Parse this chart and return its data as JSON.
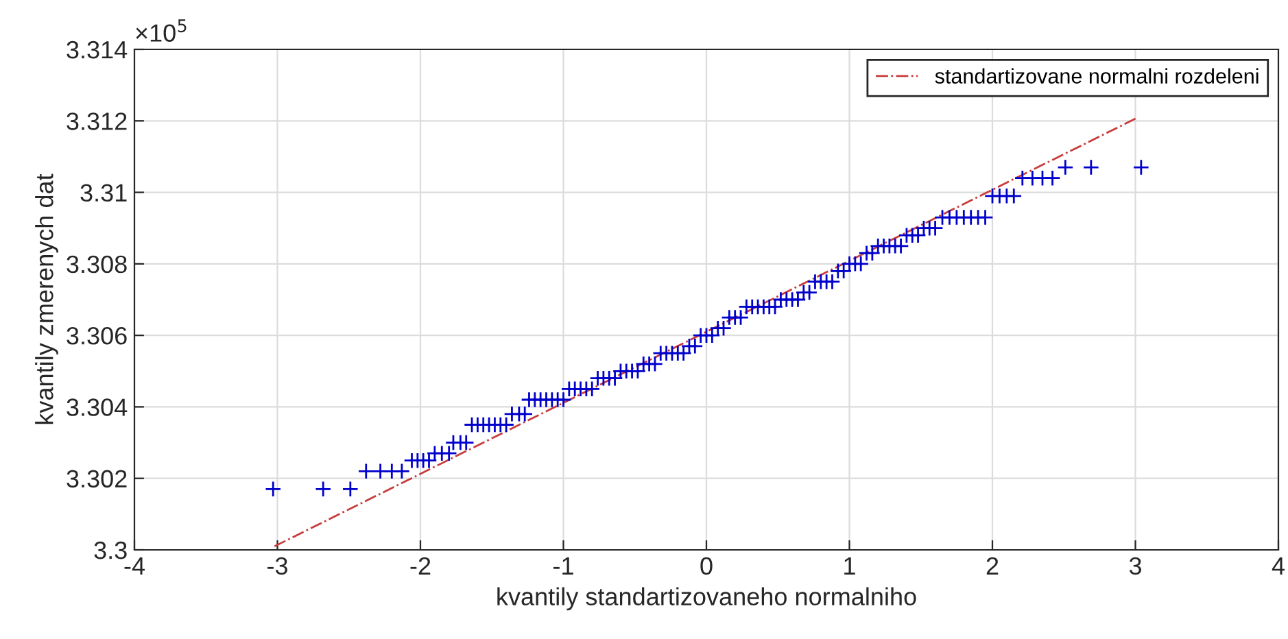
{
  "chart_data": {
    "type": "scatter",
    "xlabel": "kvantily standartizovaneho normalniho",
    "ylabel": "kvantily zmerenych dat",
    "annotations": [
      "×10$^{5}$"
    ],
    "xlim": [
      -4,
      4
    ],
    "xticks": [
      -4,
      -3,
      -2,
      -1,
      0,
      1,
      2,
      3,
      4
    ],
    "ylim": [
      3.3,
      3.314
    ],
    "yticks": [
      3.3,
      3.302,
      3.304,
      3.306,
      3.308,
      3.31,
      3.312,
      3.314
    ],
    "grid": true,
    "legend": "top right",
    "series": [
      {
        "color": "#0000cc",
        "marker": "cross",
        "x": [
          -3.03,
          -2.68,
          -2.49,
          -2.38,
          -2.28,
          -2.2,
          -2.13,
          -2.06,
          -2.02,
          -1.98,
          -1.94,
          -1.9,
          -1.85,
          -1.8,
          -1.77,
          -1.72,
          -1.68,
          -1.64,
          -1.6,
          -1.56,
          -1.52,
          -1.48,
          -1.44,
          -1.4,
          -1.36,
          -1.31,
          -1.27,
          -1.24,
          -1.2,
          -1.16,
          -1.12,
          -1.08,
          -1.04,
          -1.0,
          -0.96,
          -0.92,
          -0.88,
          -0.84,
          -0.8,
          -0.76,
          -0.72,
          -0.68,
          -0.64,
          -0.6,
          -0.56,
          -0.52,
          -0.48,
          -0.44,
          -0.4,
          -0.36,
          -0.32,
          -0.28,
          -0.24,
          -0.2,
          -0.16,
          -0.12,
          -0.08,
          -0.04,
          0.0,
          0.04,
          0.08,
          0.12,
          0.16,
          0.2,
          0.24,
          0.28,
          0.32,
          0.36,
          0.4,
          0.44,
          0.48,
          0.52,
          0.56,
          0.6,
          0.64,
          0.68,
          0.72,
          0.76,
          0.8,
          0.84,
          0.88,
          0.92,
          0.96,
          1.0,
          1.04,
          1.08,
          1.12,
          1.16,
          1.2,
          1.24,
          1.28,
          1.32,
          1.36,
          1.4,
          1.44,
          1.48,
          1.52,
          1.56,
          1.6,
          1.65,
          1.7,
          1.75,
          1.8,
          1.85,
          1.9,
          1.95,
          2.0,
          2.05,
          2.1,
          2.15,
          2.21,
          2.28,
          2.35,
          2.42,
          2.51,
          2.69,
          3.04
        ],
        "values": [
          3.3017,
          3.3017,
          3.3017,
          3.3022,
          3.3022,
          3.3022,
          3.3022,
          3.3025,
          3.3025,
          3.3025,
          3.3025,
          3.3027,
          3.3027,
          3.3027,
          3.303,
          3.303,
          3.303,
          3.3035,
          3.3035,
          3.3035,
          3.3035,
          3.3035,
          3.3035,
          3.3035,
          3.3038,
          3.3038,
          3.3038,
          3.3042,
          3.3042,
          3.3042,
          3.3042,
          3.3042,
          3.3042,
          3.3042,
          3.3045,
          3.3045,
          3.3045,
          3.3045,
          3.3045,
          3.3048,
          3.3048,
          3.3048,
          3.3048,
          3.305,
          3.305,
          3.305,
          3.305,
          3.3052,
          3.3052,
          3.3052,
          3.3055,
          3.3055,
          3.3055,
          3.3055,
          3.3055,
          3.3057,
          3.3057,
          3.306,
          3.306,
          3.306,
          3.3062,
          3.3062,
          3.3065,
          3.3065,
          3.3065,
          3.3068,
          3.3068,
          3.3068,
          3.3068,
          3.3068,
          3.3068,
          3.307,
          3.307,
          3.307,
          3.307,
          3.3072,
          3.3072,
          3.3075,
          3.3075,
          3.3075,
          3.3075,
          3.3078,
          3.3078,
          3.308,
          3.308,
          3.308,
          3.3083,
          3.3083,
          3.3085,
          3.3085,
          3.3085,
          3.3085,
          3.3085,
          3.3088,
          3.3088,
          3.3088,
          3.309,
          3.309,
          3.309,
          3.3093,
          3.3093,
          3.3093,
          3.3093,
          3.3093,
          3.3093,
          3.3093,
          3.3099,
          3.3099,
          3.3099,
          3.3099,
          3.3104,
          3.3104,
          3.3104,
          3.3104,
          3.3107,
          3.3107,
          3.3107
        ]
      },
      {
        "type": "line",
        "name": "standartizovane normalni rozdeleni",
        "color": "#c83c3c",
        "line_style": "dashdot",
        "marker": "none",
        "x": [
          -3.02,
          3.02
        ],
        "values": [
          3.3001,
          3.3121
        ]
      }
    ]
  }
}
